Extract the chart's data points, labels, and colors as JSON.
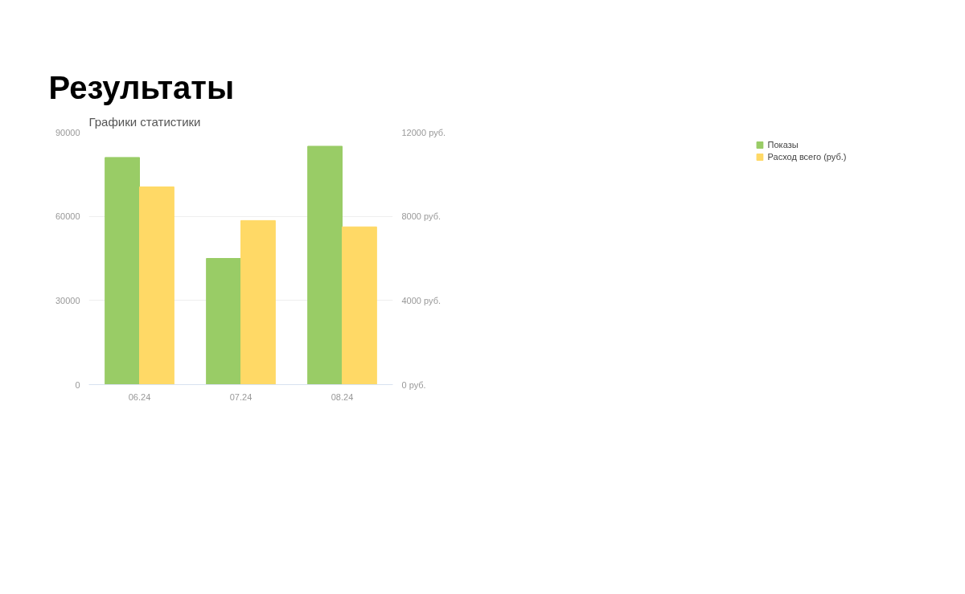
{
  "chart_data": {
    "type": "bar",
    "title": "Результаты",
    "subtitle": "Графики статистики",
    "categories": [
      "06.24",
      "07.24",
      "08.24"
    ],
    "series": [
      {
        "name": "Показы",
        "color": "#99cc66",
        "values": [
          81000,
          45000,
          85000
        ]
      },
      {
        "name": "Расход всего (руб.)",
        "color": "#ffd966",
        "axis": "y2",
        "values": [
          9400,
          7800,
          7500
        ]
      }
    ],
    "ylim": [
      0,
      90000
    ],
    "yticks": [
      0,
      30000,
      60000,
      90000
    ],
    "y2lim": [
      0,
      12000
    ],
    "y2ticks": [
      {
        "value": 0,
        "label": "0 руб."
      },
      {
        "value": 4000,
        "label": "4000 руб."
      },
      {
        "value": 8000,
        "label": "8000 руб."
      },
      {
        "value": 12000,
        "label": "12000 руб."
      }
    ],
    "grid": "y",
    "legend": "top right"
  }
}
